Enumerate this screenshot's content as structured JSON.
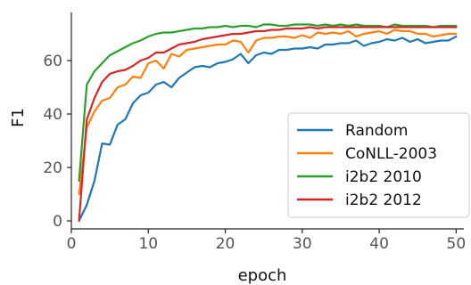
{
  "chart_data": {
    "type": "line",
    "title": "",
    "xlabel": "epoch",
    "ylabel": "F1",
    "xlim": [
      0,
      51
    ],
    "ylim": [
      -3,
      78
    ],
    "xticks": [
      0,
      10,
      20,
      30,
      40,
      50
    ],
    "yticks": [
      0,
      20,
      40,
      60
    ],
    "grid": false,
    "legend_position": "bottom-right",
    "x": [
      1,
      2,
      3,
      4,
      5,
      6,
      7,
      8,
      9,
      10,
      11,
      12,
      13,
      14,
      15,
      16,
      17,
      18,
      19,
      20,
      21,
      22,
      23,
      24,
      25,
      26,
      27,
      28,
      29,
      30,
      31,
      32,
      33,
      34,
      35,
      36,
      37,
      38,
      39,
      40,
      41,
      42,
      43,
      44,
      45,
      46,
      47,
      48,
      49,
      50
    ],
    "series": [
      {
        "name": "Random",
        "color": "#1f77b4",
        "values": [
          0,
          6,
          15,
          29,
          28.5,
          36,
          38,
          44,
          47,
          48,
          51,
          52,
          50,
          53.5,
          55.5,
          57.5,
          58,
          57.5,
          59,
          59.5,
          60.5,
          62.5,
          59,
          62,
          63,
          62.5,
          64,
          64,
          64.5,
          64.5,
          65,
          64.5,
          66,
          66,
          66.5,
          66.5,
          67.5,
          65.5,
          66.5,
          67,
          68,
          67.5,
          68.5,
          67,
          68,
          66.5,
          67,
          67.5,
          67.5,
          69
        ]
      },
      {
        "name": "CoNLL-2003",
        "color": "#ff7f0e",
        "values": [
          10,
          35,
          41,
          45,
          46,
          50,
          51,
          54,
          53.5,
          59,
          60,
          57,
          62.5,
          61.5,
          64,
          64.5,
          65,
          65.5,
          66,
          66,
          67.5,
          67,
          63,
          67.5,
          68.5,
          68.5,
          69,
          69,
          68.5,
          69.5,
          68.5,
          70.5,
          70,
          70.5,
          70,
          71,
          69,
          70,
          70.5,
          71,
          70,
          71.5,
          71,
          71,
          70,
          70,
          69,
          69.5,
          70,
          70
        ]
      },
      {
        "name": "i2b2 2010",
        "color": "#2ca02c",
        "values": [
          15,
          51,
          56,
          59,
          62,
          63.5,
          65,
          66.5,
          67.5,
          69,
          70,
          70.5,
          70.5,
          71,
          71.5,
          72,
          72,
          72.5,
          72.5,
          73,
          72.5,
          73,
          73,
          72.5,
          73.5,
          73.5,
          73,
          73,
          73.5,
          73.5,
          73.5,
          73,
          73.5,
          73,
          73.5,
          73,
          73.5,
          73,
          73,
          73,
          72.5,
          73.5,
          73,
          73,
          73,
          73,
          72.5,
          73,
          73,
          73
        ]
      },
      {
        "name": "i2b2 2012",
        "color": "#d62728",
        "values": [
          0,
          38,
          46,
          52,
          55,
          56,
          56.5,
          58,
          60,
          61,
          63,
          63,
          64.5,
          66,
          66.5,
          67,
          68,
          68.5,
          69,
          69.5,
          70,
          70,
          70.5,
          71,
          71,
          71.5,
          71.5,
          72,
          72,
          72,
          72.5,
          72,
          72.5,
          72.5,
          72.5,
          72.5,
          72.5,
          72.5,
          72.5,
          72.5,
          72.5,
          72.5,
          72.5,
          72.5,
          72.5,
          72.5,
          72.5,
          72.5,
          72.5,
          72.5
        ]
      }
    ]
  }
}
